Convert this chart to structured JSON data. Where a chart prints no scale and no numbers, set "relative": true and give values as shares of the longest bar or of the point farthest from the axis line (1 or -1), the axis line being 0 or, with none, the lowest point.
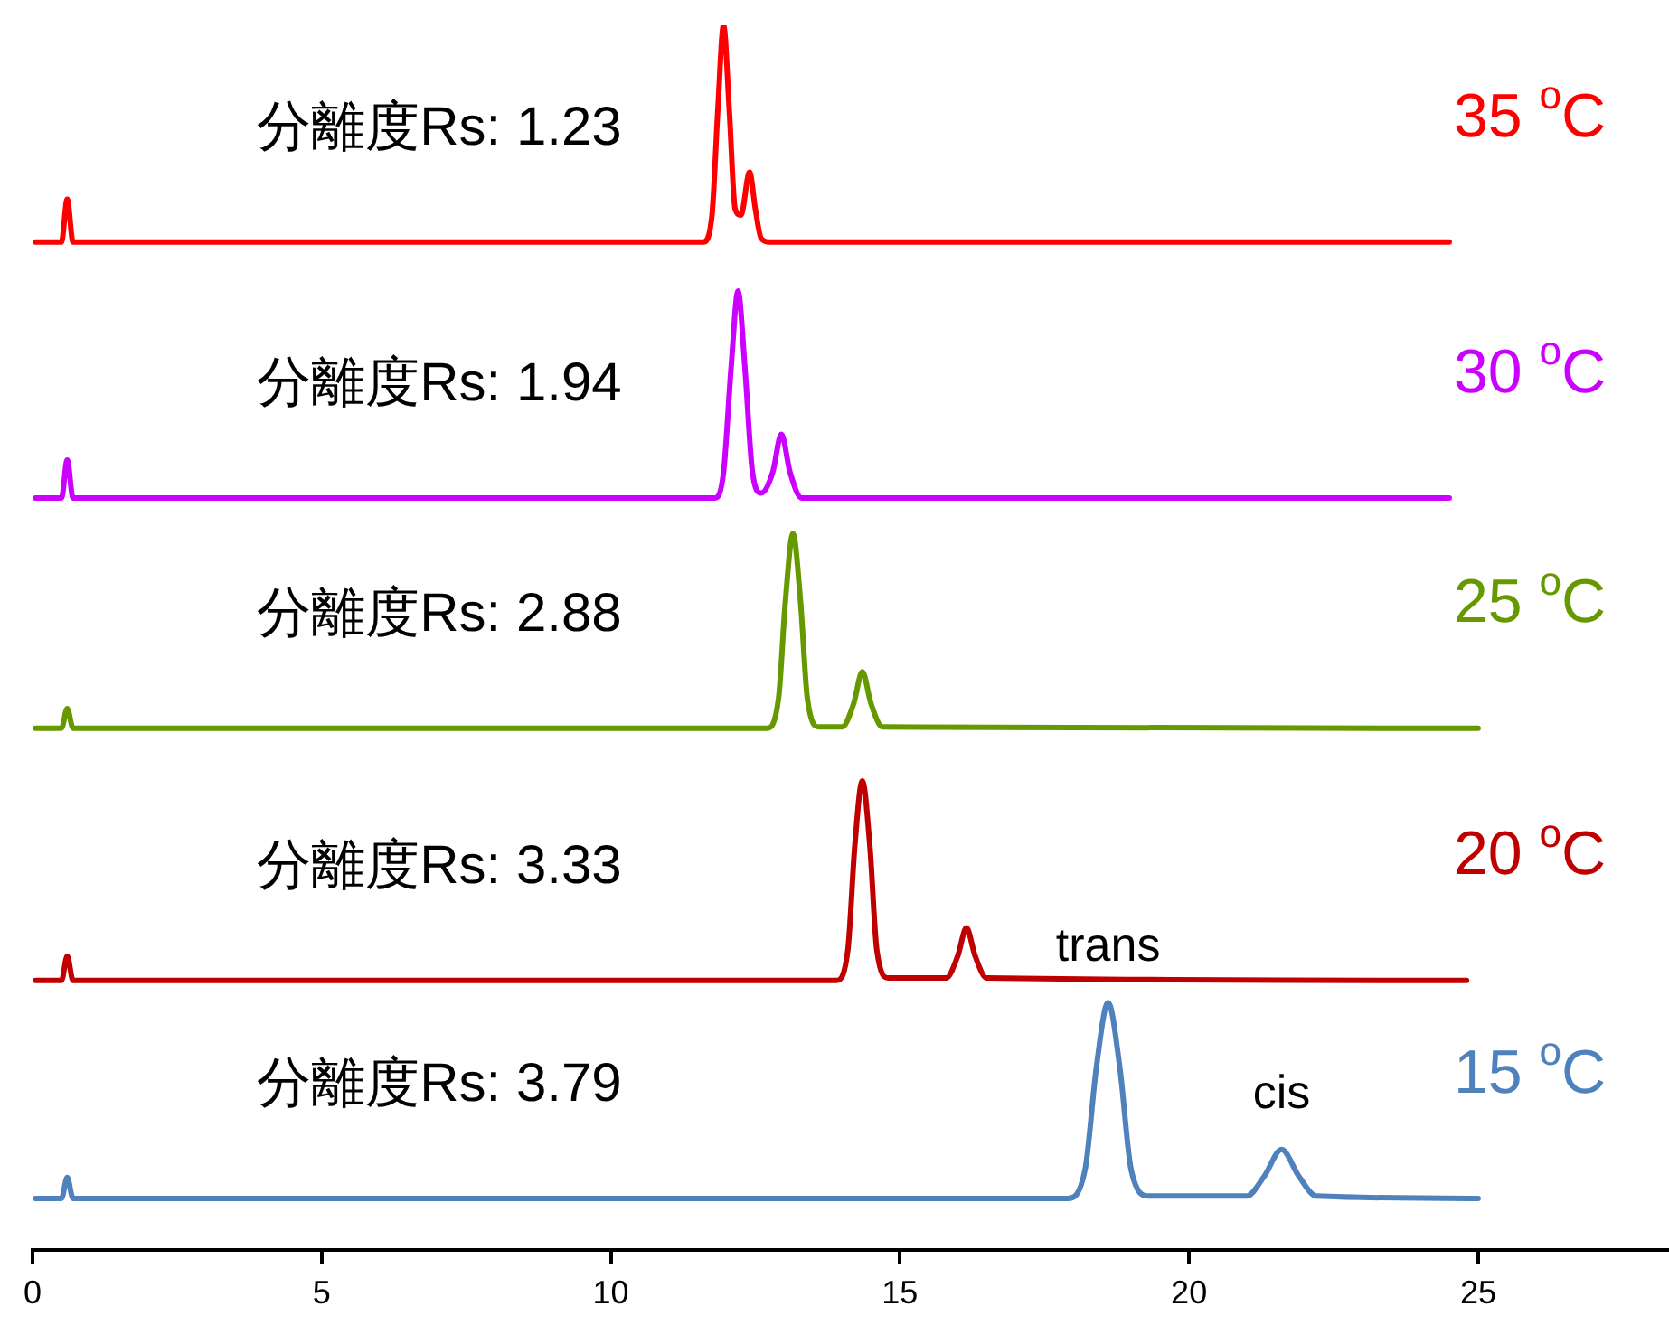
{
  "chart_data": {
    "type": "line",
    "relative": true,
    "marker": "none",
    "legend": false,
    "grid": false,
    "tick_labels": "x",
    "xlim": [
      0,
      28.3
    ],
    "xticks": [
      0,
      5,
      10,
      15,
      20,
      25
    ],
    "series": [
      {
        "name": "35 $^{o}$C",
        "color": "#ff0000",
        "x": [
          0.05,
          0.5,
          0.6,
          0.7,
          11.6,
          11.75,
          11.85,
          11.95,
          12.05,
          12.15,
          12.25,
          12.4,
          12.5,
          12.6,
          12.75,
          24.5
        ],
        "values": [
          0.823,
          0.823,
          0.858,
          0.823,
          0.823,
          0.845,
          0.93,
          1.0,
          0.93,
          0.85,
          0.845,
          0.88,
          0.85,
          0.826,
          0.823,
          0.823
        ]
      },
      {
        "name": "30 $^{o}$C",
        "color": "#cc00ff",
        "x": [
          0.05,
          0.5,
          0.6,
          0.7,
          11.8,
          11.95,
          12.08,
          12.2,
          12.32,
          12.45,
          12.6,
          12.8,
          12.95,
          13.1,
          13.3,
          24.5
        ],
        "values": [
          0.614,
          0.614,
          0.645,
          0.614,
          0.614,
          0.635,
          0.72,
          0.783,
          0.72,
          0.635,
          0.618,
          0.635,
          0.666,
          0.635,
          0.614,
          0.614
        ]
      },
      {
        "name": "25 $^{o}$C",
        "color": "#669900",
        "x": [
          0.05,
          0.5,
          0.6,
          0.7,
          12.7,
          12.9,
          13.02,
          13.15,
          13.28,
          13.4,
          13.6,
          14.0,
          14.2,
          14.35,
          14.5,
          14.7,
          25
        ],
        "values": [
          0.426,
          0.426,
          0.442,
          0.426,
          0.426,
          0.45,
          0.53,
          0.585,
          0.53,
          0.45,
          0.427,
          0.427,
          0.446,
          0.472,
          0.446,
          0.427,
          0.426
        ]
      },
      {
        "name": "20 $^{o}$C",
        "color": "#c00000",
        "x": [
          0.05,
          0.5,
          0.6,
          0.7,
          13.9,
          14.1,
          14.22,
          14.35,
          14.48,
          14.6,
          14.8,
          15.8,
          16.0,
          16.15,
          16.3,
          16.5,
          24.8
        ],
        "values": [
          0.22,
          0.22,
          0.24,
          0.22,
          0.22,
          0.245,
          0.33,
          0.383,
          0.33,
          0.245,
          0.222,
          0.222,
          0.24,
          0.263,
          0.24,
          0.222,
          0.22
        ]
      },
      {
        "name": "15 $^{o}$C",
        "color": "#4f81bd",
        "x": [
          0.05,
          0.5,
          0.6,
          0.7,
          17.9,
          18.2,
          18.4,
          18.6,
          18.8,
          19.0,
          19.3,
          21.0,
          21.3,
          21.6,
          21.9,
          22.2,
          25
        ],
        "values": [
          0.042,
          0.042,
          0.059,
          0.042,
          0.042,
          0.065,
          0.15,
          0.202,
          0.15,
          0.065,
          0.044,
          0.044,
          0.06,
          0.082,
          0.06,
          0.044,
          0.042
        ]
      }
    ],
    "annotations": [
      "分離度Rs: 1.23",
      "分離度Rs: 1.94",
      "分離度Rs: 2.88",
      "分離度Rs: 3.33",
      "分離度Rs: 3.79",
      {
        "text": "trans",
        "x": 18.6,
        "y": 0.202
      },
      {
        "text": "cis",
        "x": 21.6,
        "y": 0.082
      }
    ]
  }
}
